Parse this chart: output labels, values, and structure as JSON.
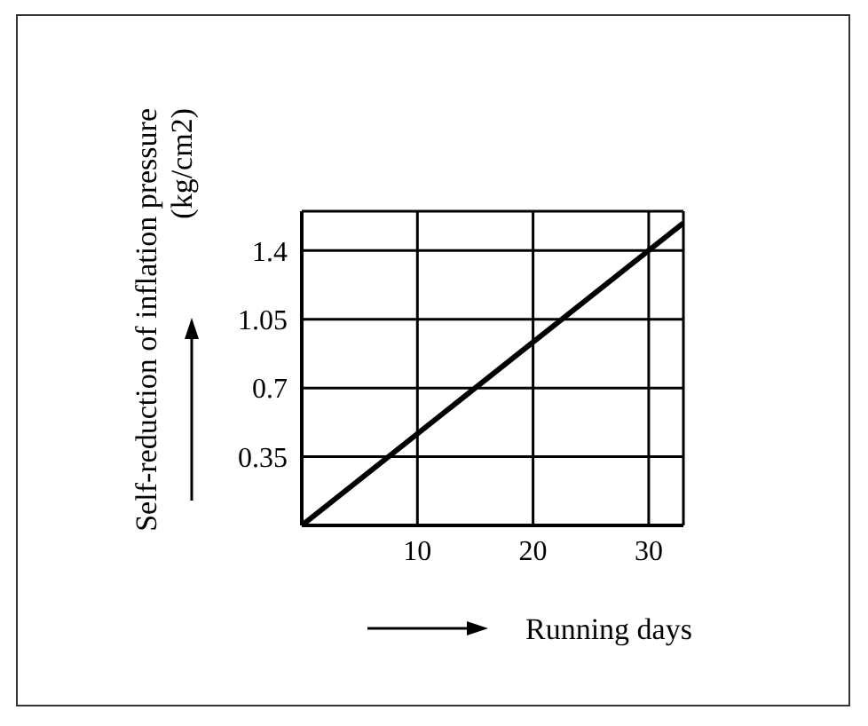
{
  "chart_data": {
    "type": "line",
    "xlabel": "Running days",
    "ylabel": "Self-reduction of inflation pressure\n(kg/cm2)",
    "x": [
      0,
      33
    ],
    "series": [
      {
        "color": "#000000",
        "values": [
          0,
          1.54
        ]
      }
    ],
    "xlim": [
      0,
      33
    ],
    "xticks": [
      {
        "value": 0,
        "label": null
      },
      10,
      20,
      30
    ],
    "ylim": [
      0,
      1.6
    ],
    "yticks": [
      {
        "value": 0,
        "label": null
      },
      0.35,
      0.7,
      1.05,
      1.4
    ],
    "grid": true,
    "marker": "none"
  }
}
